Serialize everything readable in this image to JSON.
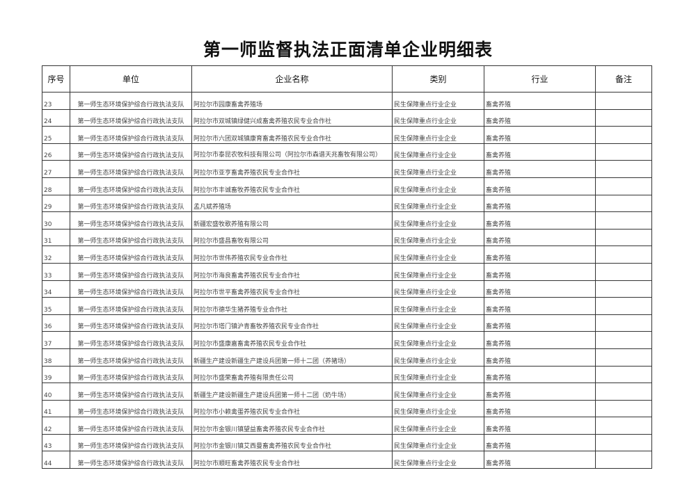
{
  "title": "第一师监督执法正面清单企业明细表",
  "headers": [
    "序号",
    "单位",
    "企业名称",
    "类别",
    "行业",
    "备注"
  ],
  "rows": [
    {
      "no": "23",
      "unit": "第一师生态环境保护综合行政执法支队",
      "name": "阿拉尔市园康畜禽养殖场",
      "category": "民生保障重点行业企业",
      "industry": "畜禽养殖",
      "note": ""
    },
    {
      "no": "24",
      "unit": "第一师生态环境保护综合行政执法支队",
      "name": "阿拉尔市双城镇绿健兴成畜禽养殖农民专业合作社",
      "category": "民生保障重点行业企业",
      "industry": "畜禽养殖",
      "note": ""
    },
    {
      "no": "25",
      "unit": "第一师生态环境保护综合行政执法支队",
      "name": "阿拉尔市六团双城镇康育畜禽养殖农民专业合作社",
      "category": "民生保障重点行业企业",
      "industry": "畜禽养殖",
      "note": ""
    },
    {
      "no": "26",
      "unit": "第一师生态环境保护综合行政执法支队",
      "name": "阿拉尔市泰昆农牧科技有限公司（阿拉尔市森谱天兆畜牧有限公司）",
      "category": "民生保障重点行业企业",
      "industry": "畜禽养殖",
      "note": ""
    },
    {
      "no": "27",
      "unit": "第一师生态环境保护综合行政执法支队",
      "name": "阿拉尔市亚亨畜禽养殖农民专业合作社",
      "category": "民生保障重点行业企业",
      "industry": "畜禽养殖",
      "note": ""
    },
    {
      "no": "28",
      "unit": "第一师生态环境保护综合行政执法支队",
      "name": "阿拉尔市丰诚畜牧养殖农民专业合作社",
      "category": "民生保障重点行业企业",
      "industry": "畜禽养殖",
      "note": ""
    },
    {
      "no": "29",
      "unit": "第一师生态环境保护综合行政执法支队",
      "name": "孟凡斌养殖场",
      "category": "民生保障重点行业企业",
      "industry": "畜禽养殖",
      "note": ""
    },
    {
      "no": "30",
      "unit": "第一师生态环境保护综合行政执法支队",
      "name": "新疆宏盛牧歌养殖有限公司",
      "category": "民生保障重点行业企业",
      "industry": "畜禽养殖",
      "note": ""
    },
    {
      "no": "31",
      "unit": "第一师生态环境保护综合行政执法支队",
      "name": "阿拉尔市盛昌畜牧有限公司",
      "category": "民生保障重点行业企业",
      "industry": "畜禽养殖",
      "note": ""
    },
    {
      "no": "32",
      "unit": "第一师生态环境保护综合行政执法支队",
      "name": "阿拉尔市世伟养殖农民专业合作社",
      "category": "民生保障重点行业企业",
      "industry": "畜禽养殖",
      "note": ""
    },
    {
      "no": "33",
      "unit": "第一师生态环境保护综合行政执法支队",
      "name": "阿拉尔市海良畜禽养殖农民专业合作社",
      "category": "民生保障重点行业企业",
      "industry": "畜禽养殖",
      "note": ""
    },
    {
      "no": "34",
      "unit": "第一师生态环境保护综合行政执法支队",
      "name": "阿拉尔市世平畜禽养殖农民专业合作社",
      "category": "民生保障重点行业企业",
      "industry": "畜禽养殖",
      "note": ""
    },
    {
      "no": "35",
      "unit": "第一师生态环境保护综合行政执法支队",
      "name": "阿拉尔市德华生猪养殖专业合作社",
      "category": "民生保障重点行业企业",
      "industry": "畜禽养殖",
      "note": ""
    },
    {
      "no": "36",
      "unit": "第一师生态环境保护综合行政执法支队",
      "name": "阿拉尔市塔门镇沪青畜牧养殖农民专业合作社",
      "category": "民生保障重点行业企业",
      "industry": "畜禽养殖",
      "note": ""
    },
    {
      "no": "37",
      "unit": "第一师生态环境保护综合行政执法支队",
      "name": "阿拉尔市盛康嘉畜禽养殖农民专业合作社",
      "category": "民生保障重点行业企业",
      "industry": "畜禽养殖",
      "note": ""
    },
    {
      "no": "38",
      "unit": "第一师生态环境保护综合行政执法支队",
      "name": "新疆生产建设新疆生产建设兵团第一师十二团（养猪场）",
      "category": "民生保障重点行业企业",
      "industry": "畜禽养殖",
      "note": ""
    },
    {
      "no": "39",
      "unit": "第一师生态环境保护综合行政执法支队",
      "name": "阿拉尔市盛荣畜禽养殖有限责任公司",
      "category": "民生保障重点行业企业",
      "industry": "畜禽养殖",
      "note": ""
    },
    {
      "no": "40",
      "unit": "第一师生态环境保护综合行政执法支队",
      "name": "新疆生产建设新疆生产建设兵团第一师十二团（奶牛场）",
      "category": "民生保障重点行业企业",
      "industry": "畜禽养殖",
      "note": ""
    },
    {
      "no": "41",
      "unit": "第一师生态环境保护综合行政执法支队",
      "name": "阿拉尔市小赖禽蛋养殖农民专业合作社",
      "category": "民生保障重点行业企业",
      "industry": "畜禽养殖",
      "note": ""
    },
    {
      "no": "42",
      "unit": "第一师生态环境保护综合行政执法支队",
      "name": "阿拉尔市金银川镇望益畜禽养殖农民专业合作社",
      "category": "民生保障重点行业企业",
      "industry": "畜禽养殖",
      "note": ""
    },
    {
      "no": "43",
      "unit": "第一师生态环境保护综合行政执法支队",
      "name": "阿拉尔市金银川镇艾西曼畜禽养殖农民专业合作社",
      "category": "民生保障重点行业企业",
      "industry": "畜禽养殖",
      "note": ""
    },
    {
      "no": "44",
      "unit": "第一师生态环境保护综合行政执法支队",
      "name": "阿拉尔市顺旺畜禽养殖农民专业合作社",
      "category": "民生保障重点行业企业",
      "industry": "畜禽养殖",
      "note": ""
    }
  ]
}
